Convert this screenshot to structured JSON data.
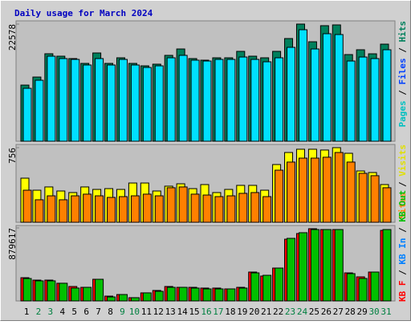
{
  "chart_data": {
    "type": "webalizer-daily",
    "title": "Daily usage for March 2024",
    "legend_separator": "/",
    "categories": [
      "1",
      "2",
      "3",
      "4",
      "5",
      "6",
      "7",
      "8",
      "9",
      "10",
      "11",
      "12",
      "13",
      "14",
      "15",
      "16",
      "17",
      "18",
      "19",
      "20",
      "21",
      "22",
      "23",
      "24",
      "25",
      "26",
      "27",
      "28",
      "29",
      "30",
      "31"
    ],
    "category_colors": [
      "#000000",
      "#008040",
      "#008040",
      "#000000",
      "#000000",
      "#000000",
      "#000000",
      "#000000",
      "#008040",
      "#008040",
      "#000000",
      "#000000",
      "#000000",
      "#000000",
      "#000000",
      "#008040",
      "#008040",
      "#000000",
      "#000000",
      "#000000",
      "#000000",
      "#000000",
      "#008040",
      "#008040",
      "#000000",
      "#000000",
      "#000000",
      "#000000",
      "#000000",
      "#008040",
      "#008040"
    ],
    "panels": [
      {
        "ylim": [
          0,
          22578
        ],
        "yticks": [
          22578
        ],
        "legend": [
          {
            "text": "Pages",
            "color": "#00c0c0"
          },
          {
            "text": "Files",
            "color": "#0040ff"
          },
          {
            "text": "Hits",
            "color": "#00805c"
          }
        ],
        "series": [
          {
            "color": "#00805c",
            "values": [
              10820,
              12370,
              16860,
              16390,
              15930,
              15000,
              17010,
              15000,
              16080,
              15000,
              14530,
              14850,
              16550,
              17780,
              15930,
              15620,
              16080,
              16080,
              17320,
              16390,
              16080,
              17320,
              19790,
              22578,
              19170,
              22270,
              22420,
              16700,
              17630,
              16850,
              18710
            ]
          },
          {
            "color": "#00e0ff",
            "values": [
              10200,
              11750,
              16390,
              15930,
              15770,
              14690,
              15930,
              14690,
              15770,
              14690,
              14220,
              14530,
              16080,
              16550,
              15620,
              15460,
              15770,
              15770,
              16230,
              15770,
              15310,
              16080,
              18090,
              21490,
              17780,
              20720,
              20560,
              15460,
              16230,
              15930,
              17630
            ]
          }
        ]
      },
      {
        "ylim": [
          0,
          756
        ],
        "yticks": [
          756
        ],
        "legend": [
          {
            "text": "Sites",
            "color": "#ff8000"
          },
          {
            "text": "Visits",
            "color": "#e0e000"
          }
        ],
        "series": [
          {
            "color": "#ffff00",
            "values": [
              447,
              325,
              358,
              317,
              301,
              358,
              333,
              341,
              333,
              398,
              398,
              317,
              366,
              390,
              341,
              382,
              301,
              333,
              374,
              374,
              325,
              585,
              707,
              740,
              740,
              732,
              756,
              699,
              520,
              504,
              382
            ]
          },
          {
            "color": "#ff8000",
            "values": [
              325,
              228,
              268,
              228,
              268,
              285,
              268,
              252,
              260,
              268,
              285,
              268,
              350,
              358,
              285,
              276,
              260,
              268,
              293,
              301,
              260,
              528,
              610,
              650,
              650,
              659,
              707,
              610,
              496,
              472,
              350
            ]
          }
        ]
      },
      {
        "ylim": [
          0,
          879617
        ],
        "yticks": [
          879617
        ],
        "legend": [
          {
            "text": "KB F",
            "color": "#ff0000"
          },
          {
            "text": "KB In",
            "color": "#0080ff"
          },
          {
            "text": "KB Out",
            "color": "#00c000"
          }
        ],
        "series": [
          {
            "color": "#ff0000",
            "values": [
              280000,
              251000,
              251000,
              213000,
              174000,
              164000,
              261000,
              58000,
              77000,
              39000,
              97000,
              126000,
              174000,
              164000,
              164000,
              155000,
              155000,
              145000,
              164000,
              348000,
              300000,
              396000,
              744000,
              812000,
              870000,
              860000,
              860000,
              338000,
              290000,
              348000,
              850000
            ]
          },
          {
            "color": "#00c000",
            "values": [
              270000,
              242000,
              242000,
              213000,
              155000,
              164000,
              261000,
              48000,
              77000,
              39000,
              97000,
              116000,
              164000,
              164000,
              155000,
              145000,
              145000,
              145000,
              155000,
              338000,
              309000,
              396000,
              754000,
              822000,
              860000,
              860000,
              860000,
              329000,
              271000,
              348000,
              860000
            ]
          }
        ]
      }
    ]
  }
}
